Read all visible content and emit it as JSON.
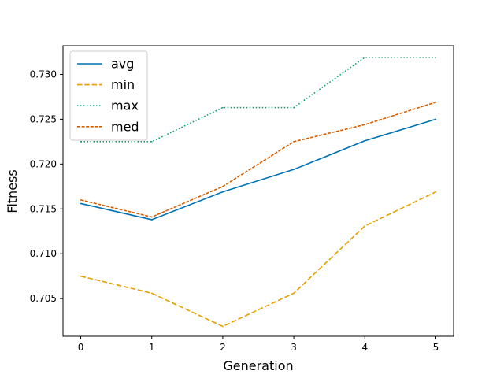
{
  "chart_data": {
    "type": "line",
    "xlabel": "Generation",
    "ylabel": "Fitness",
    "x": [
      0,
      1,
      2,
      3,
      4,
      5
    ],
    "xticks": [
      "0",
      "1",
      "2",
      "3",
      "4",
      "5"
    ],
    "yticks": [
      "0.705",
      "0.710",
      "0.715",
      "0.720",
      "0.725",
      "0.730"
    ],
    "ytick_values": [
      0.705,
      0.71,
      0.715,
      0.72,
      0.725,
      0.73
    ],
    "xlim": [
      -0.25,
      5.25
    ],
    "ylim": [
      0.7008,
      0.7332
    ],
    "grid": false,
    "legend_position": "top-left",
    "series": [
      {
        "name": "avg",
        "color": "#0072b2",
        "dash": "solid",
        "values": [
          0.7156,
          0.7138,
          0.7169,
          0.7194,
          0.7226,
          0.725
        ]
      },
      {
        "name": "min",
        "color": "#e69f00",
        "dash": "dashed",
        "values": [
          0.7075,
          0.7056,
          0.7019,
          0.7056,
          0.7131,
          0.7169
        ]
      },
      {
        "name": "max",
        "color": "#009e73",
        "dash": "dotted",
        "values": [
          0.7225,
          0.7225,
          0.7263,
          0.7263,
          0.7319,
          0.7319
        ]
      },
      {
        "name": "med",
        "color": "#d55e00",
        "dash": "dashdot",
        "values": [
          0.716,
          0.7141,
          0.7175,
          0.7225,
          0.7244,
          0.7269
        ]
      }
    ]
  }
}
